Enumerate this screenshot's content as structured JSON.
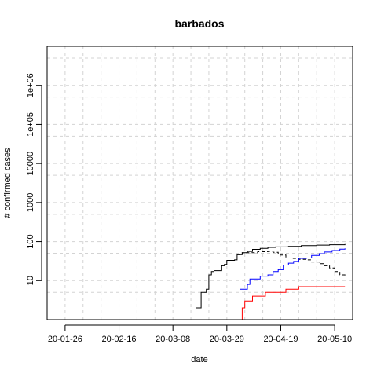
{
  "chart_data": {
    "type": "line",
    "title": "barbados",
    "xlabel": "date",
    "ylabel": "# confirmed cases",
    "y_scale": "log10",
    "ylim": [
      1,
      10000000
    ],
    "xlim": [
      "2020-01-19",
      "2020-05-17"
    ],
    "x_tick_labels": [
      {
        "date": "2020-01-26",
        "label": "20-01-26"
      },
      {
        "date": "2020-02-16",
        "label": "20-02-16"
      },
      {
        "date": "2020-03-08",
        "label": "20-03-08"
      },
      {
        "date": "2020-03-29",
        "label": "20-03-29"
      },
      {
        "date": "2020-04-19",
        "label": "20-04-19"
      },
      {
        "date": "2020-05-10",
        "label": "20-05-10"
      }
    ],
    "y_tick_labels": [
      {
        "value": 10,
        "label": "10"
      },
      {
        "value": 100,
        "label": "100"
      },
      {
        "value": 1000,
        "label": "1000"
      },
      {
        "value": 10000,
        "label": "10000"
      },
      {
        "value": 100000,
        "label": "1e+05"
      },
      {
        "value": 1000000,
        "label": "1e+06"
      }
    ],
    "grid": true,
    "series": [
      {
        "color": "#000000",
        "style": "solid",
        "points": [
          [
            "2020-03-17",
            2
          ],
          [
            "2020-03-18",
            2
          ],
          [
            "2020-03-19",
            5
          ],
          [
            "2020-03-20",
            5
          ],
          [
            "2020-03-21",
            6
          ],
          [
            "2020-03-22",
            14
          ],
          [
            "2020-03-23",
            17
          ],
          [
            "2020-03-24",
            18
          ],
          [
            "2020-03-26",
            18
          ],
          [
            "2020-03-27",
            24
          ],
          [
            "2020-03-28",
            26
          ],
          [
            "2020-03-29",
            33
          ],
          [
            "2020-04-01",
            34
          ],
          [
            "2020-04-02",
            46
          ],
          [
            "2020-04-04",
            52
          ],
          [
            "2020-04-06",
            56
          ],
          [
            "2020-04-08",
            63
          ],
          [
            "2020-04-11",
            67
          ],
          [
            "2020-04-14",
            71
          ],
          [
            "2020-04-17",
            73
          ],
          [
            "2020-04-22",
            75
          ],
          [
            "2020-04-27",
            79
          ],
          [
            "2020-05-03",
            81
          ],
          [
            "2020-05-08",
            83
          ],
          [
            "2020-05-14",
            86
          ]
        ]
      },
      {
        "color": "#000000",
        "style": "dashed",
        "points": [
          [
            "2020-04-02",
            46
          ],
          [
            "2020-04-04",
            52
          ],
          [
            "2020-04-06",
            52
          ],
          [
            "2020-04-10",
            55
          ],
          [
            "2020-04-14",
            56
          ],
          [
            "2020-04-16",
            53
          ],
          [
            "2020-04-18",
            45
          ],
          [
            "2020-04-21",
            38
          ],
          [
            "2020-04-23",
            37
          ],
          [
            "2020-04-26",
            35
          ],
          [
            "2020-04-29",
            34
          ],
          [
            "2020-05-01",
            30
          ],
          [
            "2020-05-04",
            27
          ],
          [
            "2020-05-06",
            24
          ],
          [
            "2020-05-08",
            21
          ],
          [
            "2020-05-10",
            17
          ],
          [
            "2020-05-12",
            14
          ],
          [
            "2020-05-14",
            12
          ]
        ]
      },
      {
        "color": "#0000ff",
        "style": "solid",
        "points": [
          [
            "2020-04-03",
            6
          ],
          [
            "2020-04-05",
            6
          ],
          [
            "2020-04-06",
            8
          ],
          [
            "2020-04-07",
            11
          ],
          [
            "2020-04-10",
            11
          ],
          [
            "2020-04-11",
            13
          ],
          [
            "2020-04-14",
            14
          ],
          [
            "2020-04-16",
            17
          ],
          [
            "2020-04-18",
            19
          ],
          [
            "2020-04-20",
            25
          ],
          [
            "2020-04-22",
            28
          ],
          [
            "2020-04-24",
            31
          ],
          [
            "2020-04-26",
            37
          ],
          [
            "2020-04-29",
            38
          ],
          [
            "2020-05-01",
            44
          ],
          [
            "2020-05-04",
            49
          ],
          [
            "2020-05-06",
            54
          ],
          [
            "2020-05-09",
            59
          ],
          [
            "2020-05-12",
            64
          ],
          [
            "2020-05-14",
            67
          ]
        ]
      },
      {
        "color": "#ff0000",
        "style": "solid",
        "points": [
          [
            "2020-04-03",
            1
          ],
          [
            "2020-04-04",
            2
          ],
          [
            "2020-04-05",
            3
          ],
          [
            "2020-04-07",
            3
          ],
          [
            "2020-04-08",
            4
          ],
          [
            "2020-04-12",
            4
          ],
          [
            "2020-04-13",
            5
          ],
          [
            "2020-04-20",
            5
          ],
          [
            "2020-04-21",
            6
          ],
          [
            "2020-04-25",
            6
          ],
          [
            "2020-04-26",
            7
          ],
          [
            "2020-05-14",
            7
          ]
        ]
      }
    ]
  }
}
